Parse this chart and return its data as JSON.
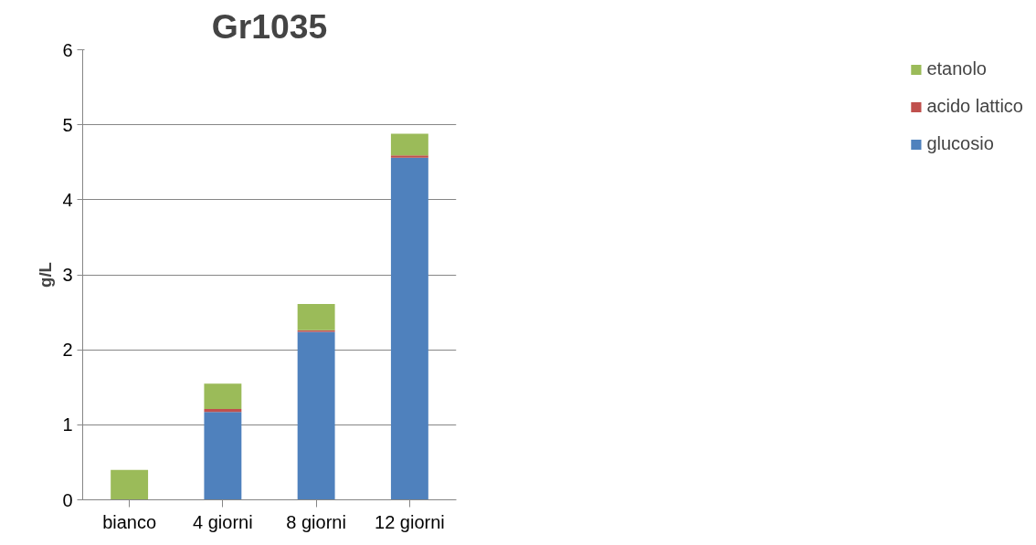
{
  "chart_data": {
    "type": "bar",
    "title": "Gr1035",
    "ylabel": "g/L",
    "categories": [
      "bianco",
      "4 giorni",
      "8 giorni",
      "12 giorni"
    ],
    "stacked": true,
    "series": [
      {
        "name": "glucosio",
        "color": "#4f81bd",
        "values": [
          0,
          1.17,
          2.24,
          4.56
        ]
      },
      {
        "name": "acido lattico",
        "color": "#c0504d",
        "values": [
          0,
          0.04,
          0.02,
          0.03
        ]
      },
      {
        "name": "etanolo",
        "color": "#9bbb59",
        "values": [
          0.4,
          0.34,
          0.35,
          0.29
        ]
      }
    ],
    "ylim": [
      0,
      6
    ],
    "yticks": [
      0,
      1,
      2,
      3,
      4,
      5,
      6
    ],
    "grid": "y",
    "legend": "right"
  }
}
